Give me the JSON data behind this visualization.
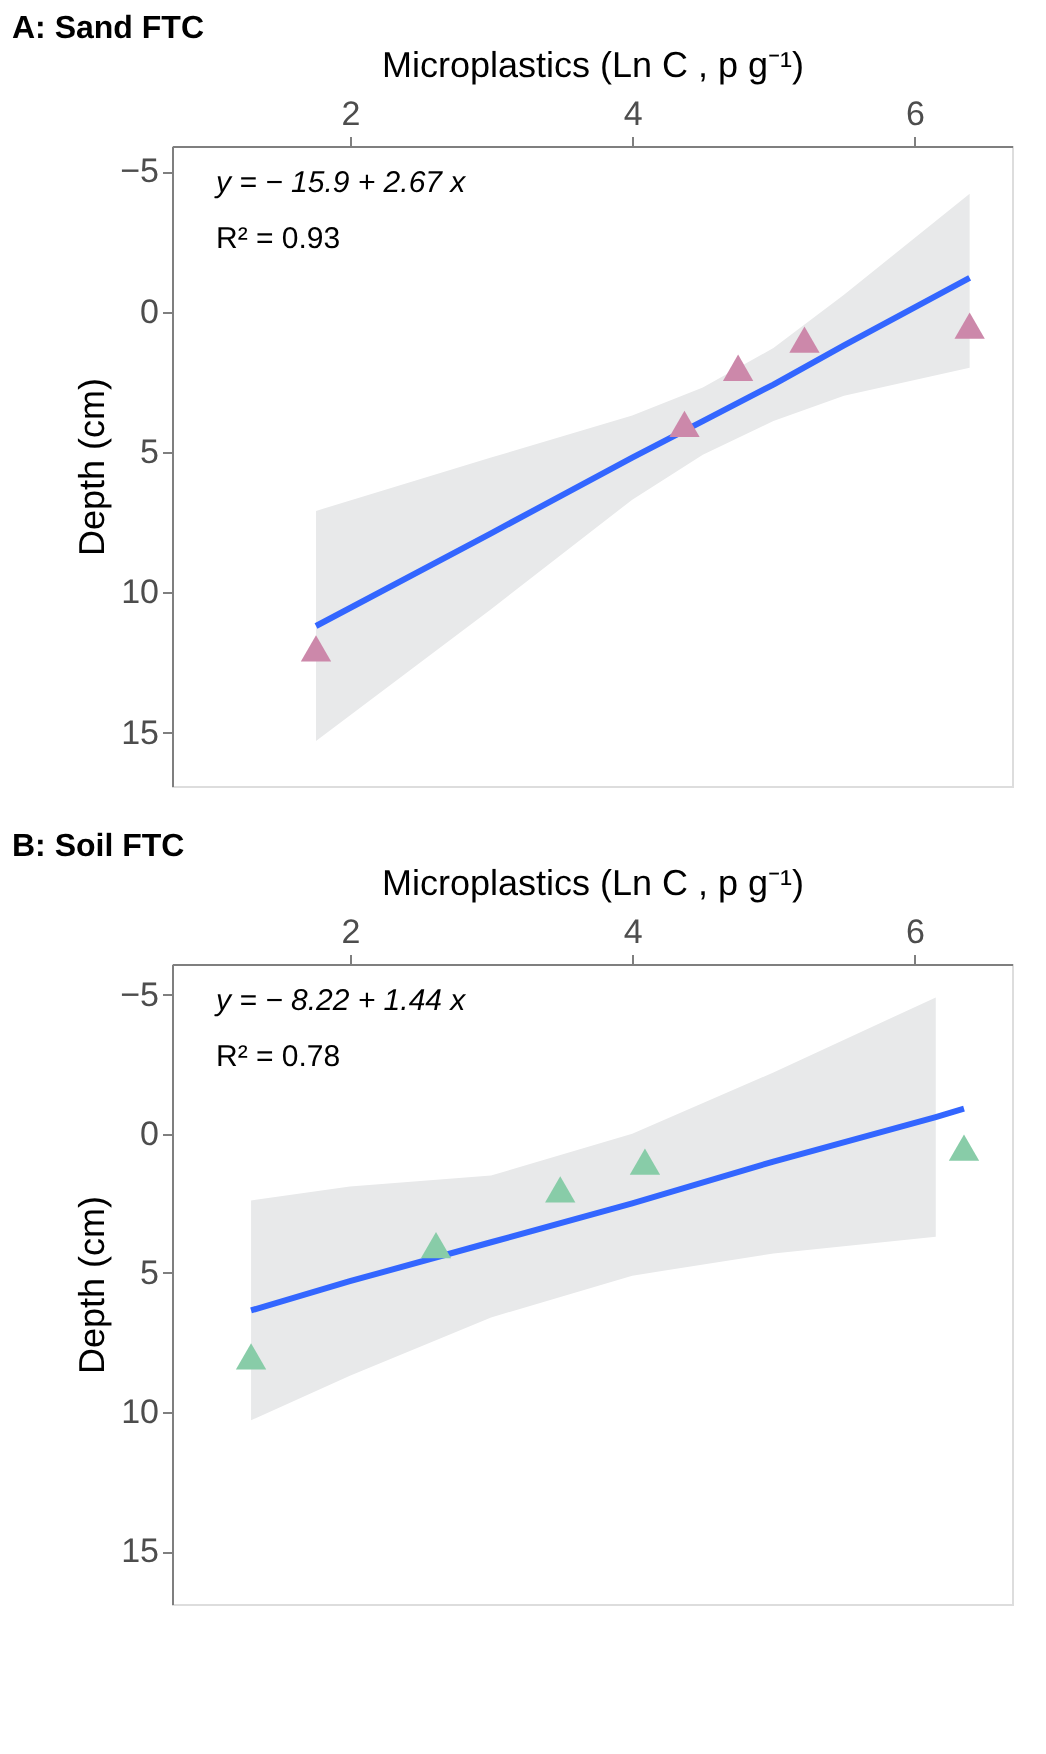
{
  "chart_data": [
    {
      "type": "scatter",
      "title": "A: Sand FTC",
      "xlabel": "Microplastics (Ln C , p g⁻¹)",
      "ylabel": "Depth (cm)",
      "xlim": [
        0.74,
        6.69
      ],
      "ylim": [
        16.9,
        -5.9
      ],
      "xticks": [
        2,
        4,
        6
      ],
      "yticks": [
        {
          "value": -5,
          "label": "−5"
        },
        0,
        5,
        10,
        15
      ],
      "grid": false,
      "annotations": [
        "y = − 15.9 + 2.67 x",
        "R² = 0.93"
      ],
      "series": [
        {
          "marker": "triangle",
          "color": "#cc88aa",
          "x": [
            1.76,
            4.37,
            4.75,
            5.22,
            6.39
          ],
          "values": [
            12,
            4,
            2,
            1,
            0.5
          ]
        },
        {
          "type": "line",
          "color": "#3366ff",
          "line_style": "solid",
          "x": [
            1.76,
            3,
            4,
            4.5,
            5,
            5.5,
            6.39
          ],
          "values": [
            11.2,
            7.9,
            5.2,
            3.9,
            2.6,
            1.2,
            -1.2
          ],
          "lower": [
            7.1,
            5.2,
            3.7,
            2.7,
            1.3,
            -0.6,
            -4.2
          ],
          "upper": [
            15.3,
            10.6,
            6.7,
            5.1,
            3.9,
            3.0,
            2.0
          ]
        }
      ]
    },
    {
      "type": "scatter",
      "title": "B: Soil FTC",
      "xlabel": "Microplastics (Ln C , p g⁻¹)",
      "ylabel": "Depth (cm)",
      "xlim": [
        0.74,
        6.69
      ],
      "ylim": [
        16.9,
        -6.1
      ],
      "xticks": [
        2,
        4,
        6
      ],
      "yticks": [
        {
          "value": -5,
          "label": "−5"
        },
        0,
        5,
        10,
        15
      ],
      "grid": false,
      "annotations": [
        "y = − 8.22 + 1.44 x",
        "R² = 0.78"
      ],
      "series": [
        {
          "marker": "triangle",
          "color": "#88cca8",
          "x": [
            1.3,
            2.61,
            3.49,
            4.09,
            6.35
          ],
          "values": [
            8,
            4,
            2,
            1,
            0.5
          ]
        },
        {
          "type": "line",
          "color": "#3366ff",
          "line_style": "solid",
          "x": [
            1.3,
            2,
            3,
            4,
            5,
            6.15,
            6.35
          ],
          "values": [
            6.35,
            5.3,
            3.9,
            2.5,
            1.0,
            -0.6,
            -0.9
          ],
          "lower": [
            2.4,
            1.9,
            1.5,
            0.0,
            -2.2,
            -4.9,
            null
          ],
          "upper": [
            10.3,
            8.7,
            6.6,
            5.1,
            4.3,
            3.7,
            null
          ]
        }
      ]
    }
  ]
}
